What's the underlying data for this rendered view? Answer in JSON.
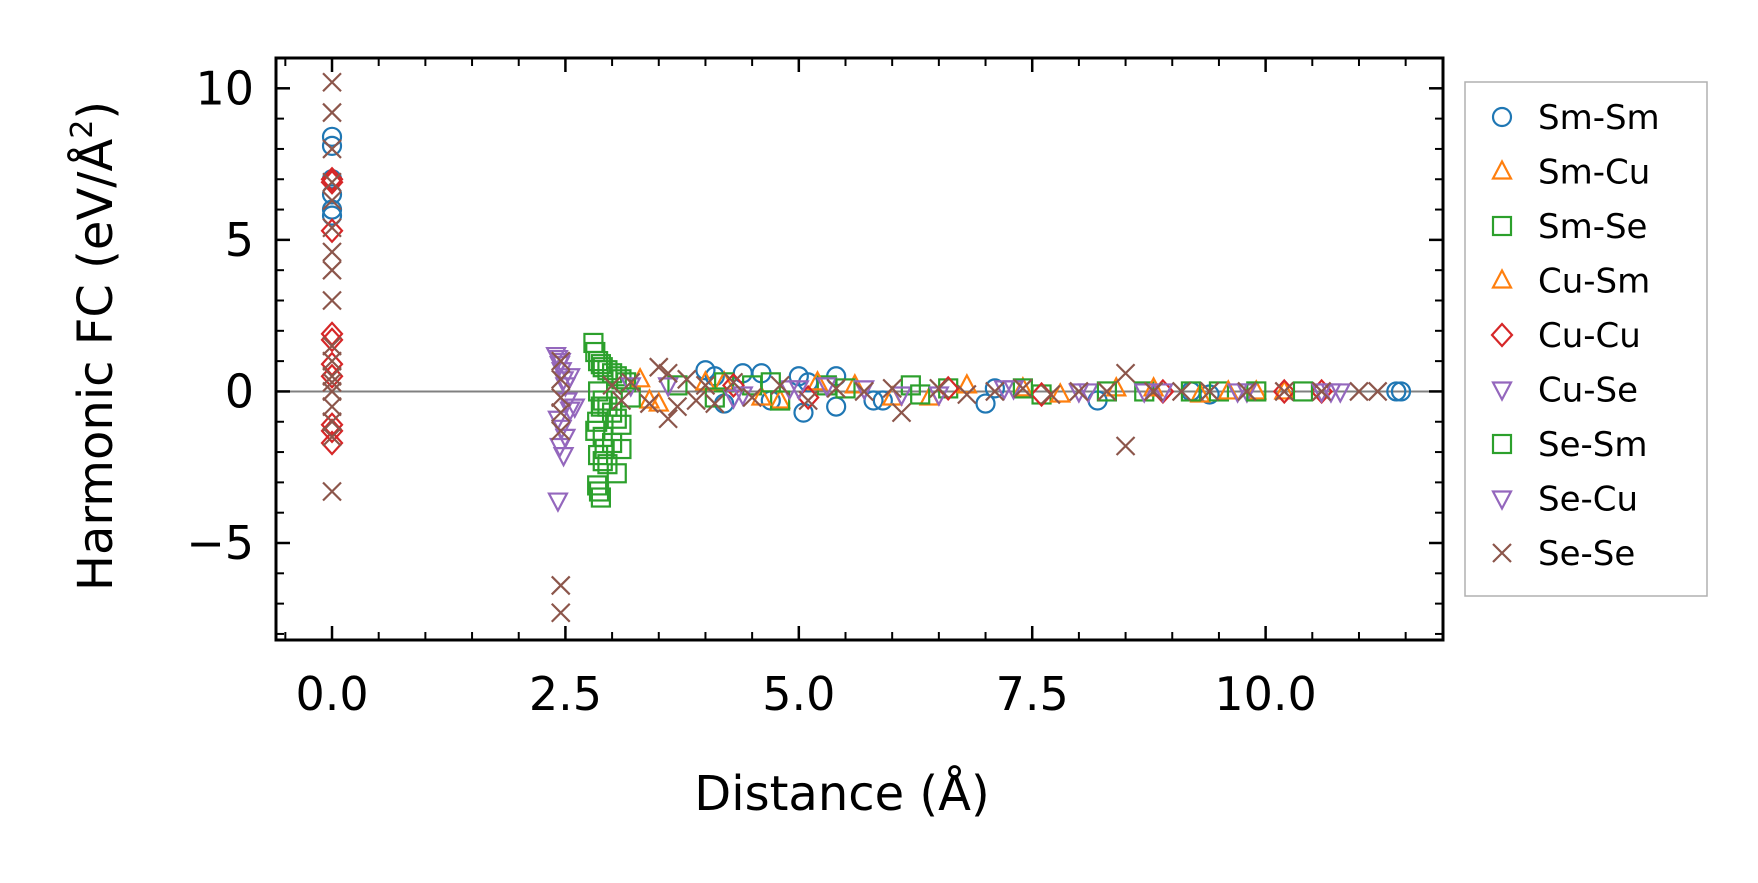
{
  "chart_data": {
    "type": "scatter",
    "xlabel": "Distance (Å)",
    "ylabel_main": "Harmonic FC (eV/Å",
    "ylabel_sup": "2",
    "ylabel_close": ")",
    "xlim": [
      -0.6,
      11.9
    ],
    "ylim": [
      -8.2,
      11.0
    ],
    "xticks": [
      {
        "value": 0.0,
        "label": "0.0"
      },
      {
        "value": 2.5,
        "label": "2.5"
      },
      {
        "value": 5.0,
        "label": "5.0"
      },
      {
        "value": 7.5,
        "label": "7.5"
      },
      {
        "value": 10.0,
        "label": "10.0"
      }
    ],
    "yticks": [
      {
        "value": 10,
        "label": "10"
      },
      {
        "value": 5,
        "label": "5"
      },
      {
        "value": 0,
        "label": "0"
      },
      {
        "value": -5,
        "label": "−5"
      }
    ],
    "zero_line": true,
    "legend_position": "outside-right",
    "series": [
      {
        "name": "Sm-Sm",
        "marker": "circle",
        "color": "#1f77b4",
        "x": [
          0,
          0,
          0,
          0,
          0,
          0,
          4.0,
          4.1,
          4.2,
          4.4,
          4.6,
          4.7,
          5.0,
          5.05,
          5.1,
          5.4,
          5.4,
          5.8,
          5.9,
          7.0,
          7.1,
          8.2,
          9.2,
          9.4,
          11.4,
          11.45
        ],
        "y": [
          8.4,
          8.1,
          7.0,
          6.5,
          6.0,
          5.8,
          0.7,
          0.5,
          -0.4,
          0.6,
          0.6,
          -0.3,
          0.5,
          -0.7,
          0.3,
          0.5,
          -0.5,
          -0.3,
          -0.3,
          -0.4,
          0.1,
          -0.3,
          0.0,
          -0.1,
          0.0,
          0.0
        ]
      },
      {
        "name": "Sm-Cu",
        "marker": "triangle-up",
        "color": "#ff7f0e",
        "x": [
          3.3,
          3.5,
          4.2,
          4.8,
          5.6,
          6.4,
          7.4,
          8.4,
          9.3,
          9.9
        ],
        "y": [
          0.4,
          -0.4,
          0.3,
          -0.3,
          0.2,
          -0.2,
          0.1,
          0.1,
          -0.1,
          0.0
        ]
      },
      {
        "name": "Sm-Se",
        "marker": "square",
        "color": "#2ca02c",
        "x": [
          2.8,
          2.82,
          2.85,
          2.88,
          2.9,
          2.95,
          3.0,
          3.05,
          3.1,
          3.15,
          2.85,
          2.9,
          2.95,
          3.0,
          3.05,
          3.1,
          2.82,
          2.9,
          3.0,
          3.1,
          2.85,
          2.95,
          3.05,
          4.2,
          4.5,
          4.8,
          5.3,
          6.2,
          6.6,
          7.6,
          8.7,
          9.5
        ],
        "y": [
          1.6,
          1.3,
          1.0,
          0.9,
          0.8,
          0.7,
          0.6,
          0.5,
          0.4,
          0.3,
          0.0,
          -0.3,
          -0.5,
          -0.7,
          -0.9,
          -1.1,
          -1.3,
          -1.5,
          -1.7,
          -1.9,
          -2.1,
          -2.4,
          -2.7,
          0.3,
          0.2,
          -0.3,
          0.2,
          0.2,
          0.1,
          -0.1,
          0.0,
          0.0
        ]
      },
      {
        "name": "Cu-Sm",
        "marker": "triangle-up",
        "color": "#ff7f0e",
        "x": [
          3.4,
          4.0,
          4.6,
          5.2,
          6.0,
          6.8,
          7.8,
          8.8,
          9.6,
          10.2
        ],
        "y": [
          -0.3,
          0.3,
          -0.2,
          0.3,
          -0.2,
          0.2,
          -0.1,
          0.1,
          0.0,
          0.0
        ]
      },
      {
        "name": "Cu-Cu",
        "marker": "diamond",
        "color": "#d62728",
        "x": [
          0,
          0,
          0,
          0,
          0,
          0,
          0,
          0,
          0,
          0,
          4.3,
          5.1,
          6.6,
          7.6,
          8.9,
          10.2,
          10.6
        ],
        "y": [
          7.0,
          6.9,
          5.3,
          1.9,
          1.7,
          0.9,
          0.5,
          -1.1,
          -1.3,
          -1.7,
          0.2,
          -0.2,
          0.1,
          -0.1,
          0.0,
          0.0,
          0.0
        ]
      },
      {
        "name": "Cu-Se",
        "marker": "triangle-down",
        "color": "#9467bd",
        "x": [
          2.4,
          2.42,
          2.44,
          2.46,
          2.48,
          2.5,
          2.52,
          2.55,
          2.42,
          2.46,
          2.5,
          2.44,
          2.48,
          2.42,
          3.2,
          4.4,
          4.9,
          5.3,
          6.1,
          7.2,
          8.1,
          8.9,
          9.8,
          10.7
        ],
        "y": [
          1.2,
          1.1,
          0.9,
          0.7,
          0.4,
          0.2,
          -0.3,
          -0.6,
          -0.9,
          -1.2,
          -1.5,
          -1.8,
          -2.1,
          -3.6,
          0.2,
          -0.1,
          0.1,
          0.2,
          -0.1,
          0.1,
          0.0,
          0.0,
          0.0,
          0.0
        ]
      },
      {
        "name": "Se-Sm",
        "marker": "square",
        "color": "#2ca02c",
        "x": [
          2.84,
          2.86,
          2.88,
          2.9,
          2.92,
          2.84,
          2.88,
          3.2,
          3.7,
          4.1,
          4.7,
          5.5,
          6.3,
          7.4,
          8.3,
          9.2,
          9.9,
          10.4
        ],
        "y": [
          -3.1,
          -3.3,
          -3.5,
          -2.3,
          -1.9,
          -1.0,
          -0.5,
          -0.2,
          0.2,
          -0.2,
          0.3,
          0.1,
          -0.1,
          0.1,
          0.0,
          0.0,
          0.0,
          0.0
        ]
      },
      {
        "name": "Se-Cu",
        "marker": "triangle-down",
        "color": "#9467bd",
        "x": [
          2.45,
          2.55,
          2.6,
          3.6,
          4.3,
          5.0,
          5.7,
          6.5,
          7.3,
          8.0,
          8.7,
          9.7,
          10.6,
          10.8
        ],
        "y": [
          1.0,
          0.5,
          -0.5,
          0.2,
          -0.2,
          0.1,
          0.1,
          -0.1,
          0.1,
          0.0,
          0.0,
          0.0,
          0.0,
          0.0
        ]
      },
      {
        "name": "Se-Se",
        "marker": "x",
        "color": "#8c564b",
        "x": [
          0,
          0,
          0,
          0,
          0,
          0,
          0,
          0,
          0,
          0,
          0,
          0,
          0,
          0,
          0,
          0,
          0,
          0,
          2.45,
          2.45,
          2.45,
          2.45,
          2.45,
          2.45,
          2.45,
          3.0,
          3.1,
          3.2,
          3.4,
          3.5,
          3.6,
          3.6,
          3.7,
          3.8,
          3.9,
          4.0,
          4.1,
          4.3,
          4.5,
          4.8,
          5.1,
          5.4,
          5.7,
          6.0,
          6.1,
          6.5,
          6.8,
          7.1,
          7.4,
          7.7,
          8.0,
          8.3,
          8.5,
          8.5,
          8.8,
          9.1,
          9.4,
          9.8,
          10.2,
          10.6,
          11.0,
          11.2
        ],
        "y": [
          10.2,
          9.2,
          8.0,
          6.9,
          6.3,
          5.4,
          4.6,
          4.0,
          3.0,
          1.5,
          1.0,
          0.5,
          0.0,
          -0.5,
          -1.0,
          -1.5,
          -3.3,
          0.3,
          1.0,
          0.4,
          -0.2,
          -0.7,
          -1.3,
          -6.4,
          -7.3,
          0.2,
          -0.3,
          0.3,
          -0.4,
          0.8,
          -0.9,
          0.6,
          -0.5,
          0.4,
          -0.3,
          0.2,
          -0.4,
          0.3,
          -0.2,
          0.2,
          -0.3,
          0.1,
          0.0,
          0.1,
          -0.7,
          0.1,
          -0.1,
          0.0,
          0.1,
          -0.1,
          0.0,
          0.0,
          0.6,
          -1.8,
          0.0,
          0.0,
          0.0,
          0.0,
          0.0,
          0.0,
          0.0,
          0.0
        ]
      }
    ]
  }
}
